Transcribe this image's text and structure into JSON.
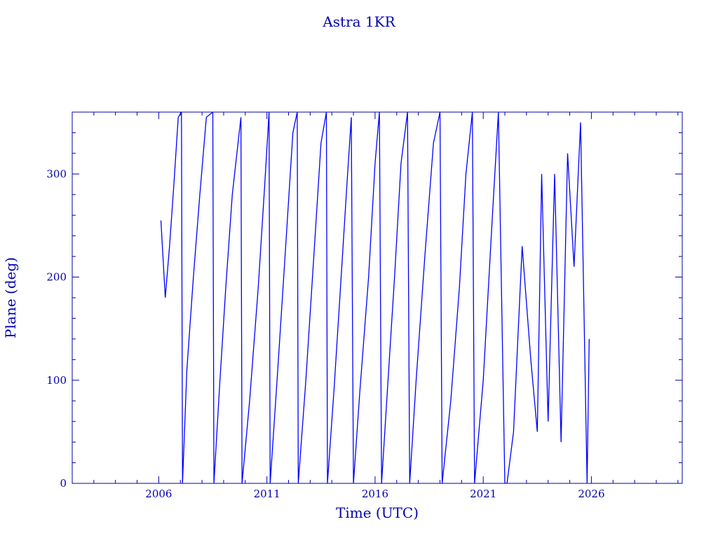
{
  "chart_data": {
    "type": "line",
    "title": "Astra 1KR",
    "xlabel": "Time (UTC)",
    "ylabel": "Plane (deg)",
    "xlim": [
      2002.0,
      2030.2
    ],
    "ylim": [
      0,
      360
    ],
    "x_ticks": [
      2006,
      2011,
      2016,
      2021,
      2026
    ],
    "y_ticks": [
      0,
      100,
      200,
      300
    ],
    "grid": false,
    "line_color": "#0000ff",
    "axis_color": "#0000b0",
    "series": [
      {
        "description_of_shape": "plane angle wraps 0 to 360 deg repeatedly",
        "x": [
          2006.1,
          2006.3,
          2006.5,
          2006.7,
          2006.9,
          2007.05,
          2007.1,
          2007.3,
          2007.6,
          2007.9,
          2008.2,
          2008.5,
          2008.55,
          2008.8,
          2009.1,
          2009.4,
          2009.8,
          2009.85,
          2010.2,
          2010.6,
          2010.9,
          2011.1,
          2011.15,
          2011.5,
          2011.9,
          2012.2,
          2012.4,
          2012.45,
          2012.8,
          2013.2,
          2013.5,
          2013.75,
          2013.8,
          2014.1,
          2014.4,
          2014.7,
          2014.9,
          2015.0,
          2015.3,
          2015.7,
          2016.0,
          2016.2,
          2016.3,
          2016.6,
          2016.9,
          2017.2,
          2017.5,
          2017.6,
          2017.9,
          2018.3,
          2018.7,
          2019.0,
          2019.1,
          2019.5,
          2019.9,
          2020.2,
          2020.5,
          2020.6,
          2021.0,
          2021.4,
          2021.7,
          2022.0,
          2022.1,
          2022.4,
          2022.8,
          2023.2,
          2023.5,
          2023.7,
          2024.0,
          2024.3,
          2024.6,
          2024.9,
          2025.2,
          2025.5,
          2025.8,
          2025.9
        ],
        "y": [
          255,
          180,
          230,
          290,
          355,
          360,
          0,
          110,
          200,
          280,
          355,
          360,
          0,
          90,
          190,
          280,
          355,
          0,
          80,
          190,
          290,
          360,
          0,
          110,
          240,
          340,
          360,
          0,
          100,
          230,
          330,
          360,
          0,
          90,
          190,
          290,
          355,
          0,
          90,
          200,
          310,
          360,
          0,
          100,
          200,
          310,
          360,
          0,
          100,
          220,
          330,
          360,
          0,
          80,
          190,
          300,
          360,
          0,
          100,
          250,
          360,
          0,
          0,
          50,
          230,
          120,
          50,
          300,
          60,
          300,
          40,
          320,
          210,
          350,
          0,
          140
        ]
      }
    ]
  }
}
